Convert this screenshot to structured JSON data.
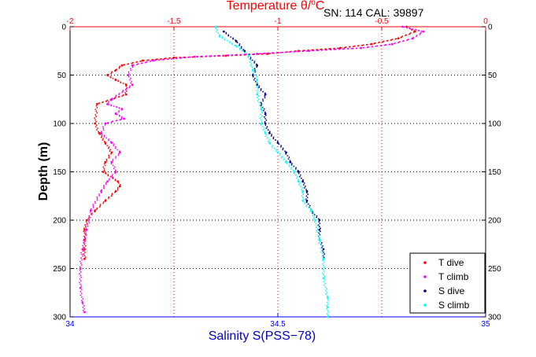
{
  "chart_data": {
    "type": "scatter",
    "title": "Temperature θ/°C",
    "title_parts": {
      "base": "Temperature θ/",
      "sup": "o",
      "unit": "C"
    },
    "subtitle": "SN: 114  CAL: 39897",
    "xlabel_top": "Temperature θ/°C",
    "xlabel_bottom": "Salinity S(PSS−78)",
    "ylabel": "Depth (m)",
    "temperature_axis": {
      "range": [
        -2,
        0
      ],
      "ticks": [
        -2,
        -1.5,
        -1,
        -0.5,
        0
      ],
      "tick_labels": [
        "-2",
        "-1.5",
        "-1",
        "-0.5",
        "0"
      ]
    },
    "salinity_axis": {
      "range": [
        34,
        35
      ],
      "ticks": [
        34,
        34.5,
        35
      ],
      "tick_labels": [
        "34",
        "34.5",
        "35"
      ]
    },
    "depth_axis": {
      "range": [
        0,
        300
      ],
      "reversed": true,
      "ticks": [
        0,
        50,
        100,
        150,
        200,
        250,
        300
      ],
      "tick_labels": [
        "0",
        "50",
        "100",
        "150",
        "200",
        "250",
        "300"
      ]
    },
    "grid": true,
    "legend_placement": "bottom-right",
    "series": [
      {
        "name": "T dive",
        "axis": "temperature",
        "color": "#ff0000",
        "x": [
          -0.38,
          -0.34,
          -0.42,
          -0.55,
          -0.7,
          -0.9,
          -1.05,
          -1.25,
          -1.5,
          -1.65,
          -1.75,
          -1.78,
          -1.82,
          -1.78,
          -1.73,
          -1.73,
          -1.8,
          -1.87,
          -1.88,
          -1.86,
          -1.83,
          -1.8,
          -1.83,
          -1.84,
          -1.77,
          -1.76,
          -1.78,
          -1.83,
          -1.88,
          -1.92,
          -1.93,
          -1.93,
          -1.93,
          -1.93
        ],
        "y": [
          0,
          5,
          12,
          18,
          22,
          25,
          28,
          30,
          32,
          35,
          40,
          45,
          50,
          55,
          60,
          70,
          75,
          80,
          100,
          110,
          120,
          130,
          140,
          150,
          160,
          165,
          170,
          180,
          190,
          200,
          210,
          220,
          230,
          240
        ]
      },
      {
        "name": "T climb",
        "axis": "temperature",
        "color": "#ff00ff",
        "x": [
          -0.4,
          -0.3,
          -0.35,
          -0.45,
          -0.6,
          -0.85,
          -1.1,
          -1.4,
          -1.6,
          -1.7,
          -1.72,
          -1.7,
          -1.8,
          -1.82,
          -1.75,
          -1.78,
          -1.74,
          -1.83,
          -1.85,
          -1.8,
          -1.76,
          -1.8,
          -1.78,
          -1.82,
          -1.85,
          -1.9,
          -1.92,
          -1.94,
          -1.95,
          -1.95,
          -1.94,
          -1.93
        ],
        "y": [
          0,
          5,
          12,
          18,
          22,
          25,
          28,
          31,
          35,
          40,
          50,
          60,
          75,
          80,
          85,
          90,
          95,
          100,
          110,
          120,
          130,
          140,
          150,
          160,
          170,
          190,
          210,
          230,
          250,
          270,
          285,
          295
        ]
      },
      {
        "name": "S dive",
        "axis": "salinity",
        "color": "#00008b",
        "x": [
          34.37,
          34.4,
          34.42,
          34.45,
          34.44,
          34.45,
          34.47,
          34.46,
          34.47,
          34.47,
          34.48,
          34.5,
          34.52,
          34.53,
          34.55,
          34.56,
          34.57,
          34.57,
          34.58,
          34.6,
          34.6,
          34.6,
          34.61,
          34.61
        ],
        "y": [
          5,
          15,
          25,
          40,
          50,
          60,
          70,
          80,
          90,
          100,
          110,
          120,
          130,
          140,
          150,
          160,
          170,
          180,
          190,
          200,
          210,
          220,
          230,
          240
        ]
      },
      {
        "name": "S climb",
        "axis": "salinity",
        "color": "#00ffff",
        "x": [
          34.35,
          34.36,
          34.4,
          34.43,
          34.44,
          34.45,
          34.45,
          34.46,
          34.46,
          34.47,
          34.48,
          34.5,
          34.52,
          34.54,
          34.55,
          34.56,
          34.56,
          34.58,
          34.59,
          34.6,
          34.61,
          34.61,
          34.62,
          34.62,
          34.62
        ],
        "y": [
          0,
          10,
          20,
          30,
          45,
          55,
          70,
          85,
          100,
          110,
          120,
          130,
          140,
          150,
          160,
          170,
          180,
          190,
          200,
          220,
          240,
          260,
          280,
          290,
          300
        ]
      }
    ]
  }
}
